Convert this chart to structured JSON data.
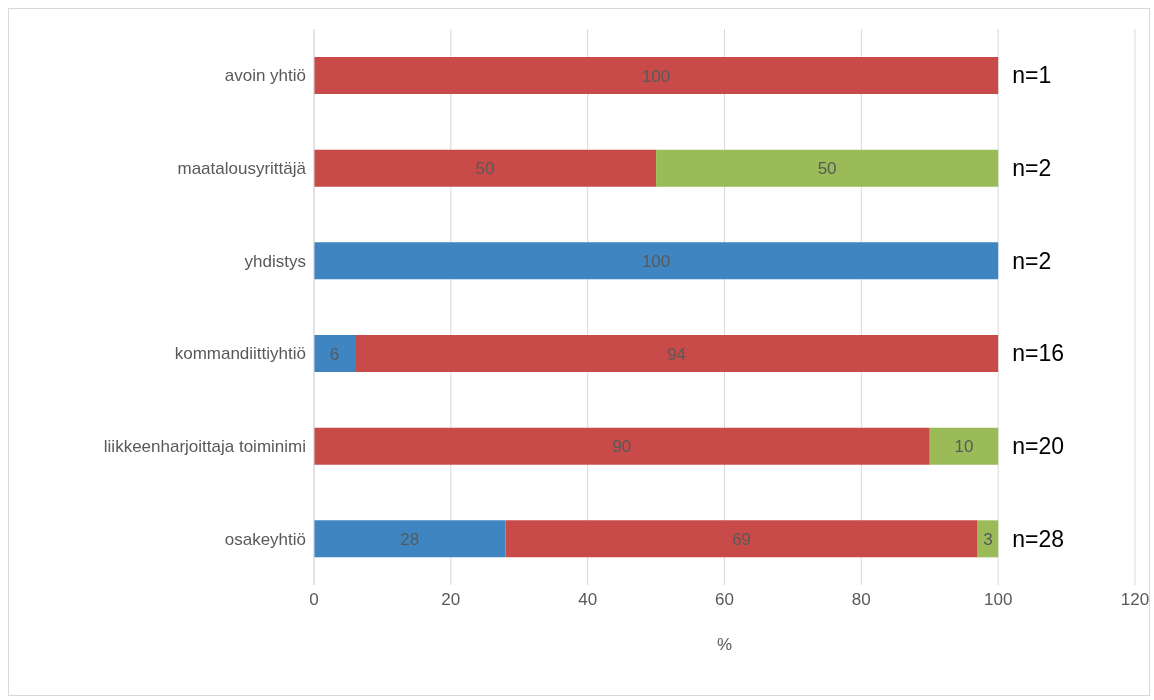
{
  "chart_data": {
    "type": "bar",
    "orientation": "horizontal",
    "stacked": true,
    "categories": [
      "avoin yhtiö",
      "maatalousyrittäjä",
      "yhdistys",
      "kommandiittiyhtiö",
      "liikkeenharjoittaja toiminimi",
      "osakeyhtiö"
    ],
    "series": [
      {
        "color": "#3f85c1",
        "values": [
          null,
          null,
          100,
          6,
          null,
          28
        ]
      },
      {
        "color": "#c84b4a",
        "values": [
          100,
          50,
          null,
          94,
          90,
          69
        ]
      },
      {
        "color": "#9bbb59",
        "values": [
          null,
          50,
          null,
          null,
          10,
          3
        ]
      }
    ],
    "xlabel": "%",
    "xlim": [
      0,
      120
    ],
    "xticks": [
      0,
      20,
      40,
      60,
      80,
      100,
      120
    ],
    "grid": "x",
    "legend": false,
    "data_labels": true,
    "annotations": [
      "n=1",
      "n=2",
      "n=2",
      "n=16",
      "n=20",
      "n=28"
    ]
  }
}
